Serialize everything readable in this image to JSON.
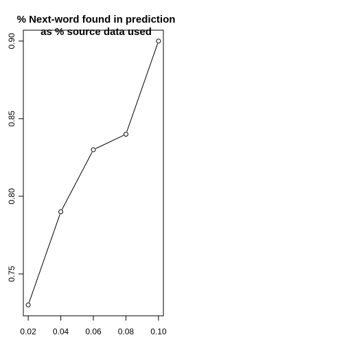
{
  "chart_data": {
    "type": "line",
    "title_lines": [
      "% Next-word found in prediction",
      "as % source data used"
    ],
    "xlabel": "",
    "ylabel": "",
    "x": [
      0.02,
      0.04,
      0.06,
      0.08,
      0.1
    ],
    "y": [
      0.73,
      0.79,
      0.83,
      0.84,
      0.9
    ],
    "xlim": [
      0.017,
      0.103
    ],
    "ylim": [
      0.723,
      0.907
    ],
    "x_ticks": [
      "0.02",
      "0.04",
      "0.06",
      "0.08",
      "0.10"
    ],
    "x_tick_values": [
      0.02,
      0.04,
      0.06,
      0.08,
      0.1
    ],
    "y_ticks": [
      "0.75",
      "0.80",
      "0.85",
      "0.90"
    ],
    "y_tick_values": [
      0.75,
      0.8,
      0.85,
      0.9
    ],
    "grid": false,
    "markers": "open-circle",
    "line_color": "#000000"
  }
}
